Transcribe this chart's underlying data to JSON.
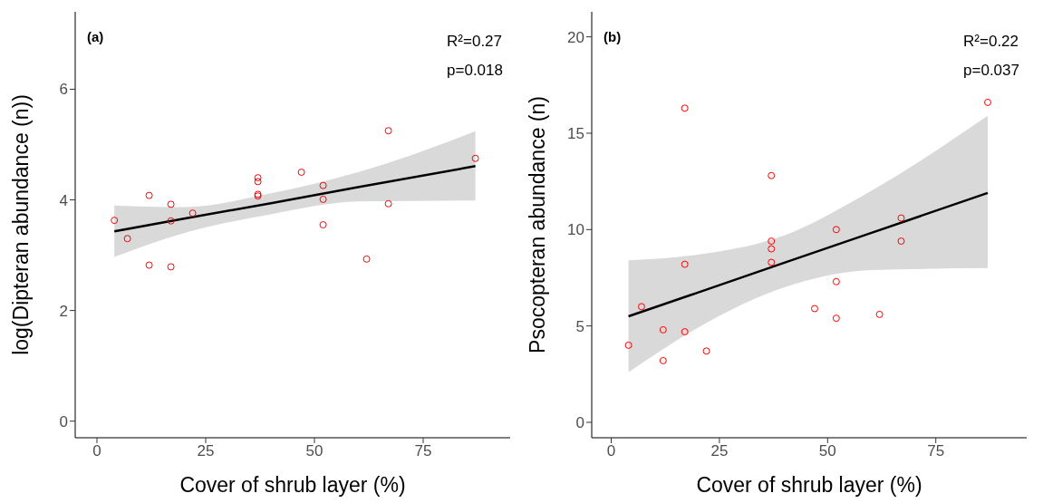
{
  "chart_data": [
    {
      "type": "scatter",
      "xlabel": "Cover of shrub layer (%)",
      "ylabel": "log(Dipteran abundance (n))",
      "annotations": [
        "(a)",
        "R²=0.27",
        "p=0.018"
      ],
      "xlim": [
        -5,
        95
      ],
      "ylim": [
        -0.3,
        7.4
      ],
      "xticks": [
        0,
        25,
        50,
        75
      ],
      "yticks": [
        0,
        2,
        4,
        6
      ],
      "grid": false,
      "legend": false,
      "series": [
        {
          "marker": "circle",
          "color": "#ff0000",
          "x": [
            4,
            7,
            12,
            12,
            17,
            17,
            17,
            22,
            37,
            37,
            37,
            37,
            47,
            52,
            52,
            52,
            62,
            67,
            67,
            87
          ],
          "values": [
            3.63,
            3.3,
            4.08,
            2.82,
            3.92,
            3.62,
            2.79,
            3.76,
            4.4,
            4.33,
            4.1,
            4.07,
            4.5,
            4.26,
            4.01,
            3.55,
            2.93,
            5.25,
            3.93,
            4.75
          ]
        },
        {
          "type": "line",
          "marker": "none",
          "color": "#000000",
          "x": [
            4,
            20,
            40,
            60,
            87
          ],
          "values": [
            3.43,
            3.66,
            3.94,
            4.23,
            4.61
          ],
          "lower": [
            2.97,
            3.4,
            3.74,
            3.97,
            3.99
          ],
          "upper": [
            3.9,
            3.87,
            4.12,
            4.5,
            5.24
          ]
        }
      ]
    },
    {
      "type": "scatter",
      "xlabel": "Cover of shrub layer (%)",
      "ylabel": "Psocopteran abundance (n)",
      "annotations": [
        "(b)",
        "R²=0.22",
        "p=0.037"
      ],
      "xlim": [
        -4.5,
        96
      ],
      "ylim": [
        -0.8,
        21.3
      ],
      "xticks": [
        0,
        25,
        50,
        75
      ],
      "yticks": [
        0,
        5,
        10,
        15,
        20
      ],
      "grid": false,
      "legend": false,
      "series": [
        {
          "marker": "circle",
          "color": "#ff0000",
          "x": [
            4,
            7,
            12,
            12,
            17,
            17,
            17,
            22,
            37,
            37,
            37,
            37,
            47,
            52,
            52,
            52,
            62,
            67,
            67,
            87
          ],
          "values": [
            4.0,
            6.0,
            4.8,
            3.2,
            16.3,
            8.2,
            4.7,
            3.7,
            12.8,
            9.4,
            9.0,
            8.3,
            5.9,
            10.0,
            7.3,
            5.4,
            5.6,
            10.6,
            9.4,
            16.6
          ]
        },
        {
          "type": "line",
          "marker": "none",
          "color": "#000000",
          "x": [
            4,
            20,
            40,
            60,
            87
          ],
          "values": [
            5.5,
            6.73,
            8.28,
            9.82,
            11.9
          ],
          "lower": [
            2.6,
            4.9,
            7.0,
            7.9,
            8.0
          ],
          "upper": [
            8.4,
            8.7,
            9.7,
            12.0,
            15.9
          ]
        }
      ]
    }
  ]
}
